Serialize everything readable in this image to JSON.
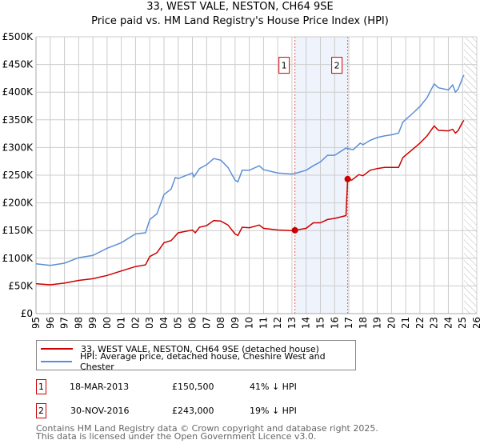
{
  "header": {
    "title": "33, WEST VALE, NESTON, CH64 9SE",
    "subtitle": "Price paid vs. HM Land Registry's House Price Index (HPI)"
  },
  "chart_data": {
    "type": "line",
    "title": "33, WEST VALE, NESTON, CH64 9SE",
    "subtitle": "Price paid vs. HM Land Registry's House Price Index (HPI)",
    "xlim": [
      1995,
      2026
    ],
    "ylim": [
      0,
      500000
    ],
    "grid": true,
    "y_ticks": [
      0,
      50000,
      100000,
      150000,
      200000,
      250000,
      300000,
      350000,
      400000,
      450000,
      500000
    ],
    "y_tick_labels": [
      "£0",
      "£50K",
      "£100K",
      "£150K",
      "£200K",
      "£250K",
      "£300K",
      "£350K",
      "£400K",
      "£450K",
      "£500K"
    ],
    "x_ticks": [
      1995,
      1996,
      1997,
      1998,
      1999,
      2000,
      2001,
      2002,
      2003,
      2004,
      2005,
      2006,
      2007,
      2008,
      2009,
      2010,
      2011,
      2012,
      2013,
      2014,
      2015,
      2016,
      2017,
      2018,
      2019,
      2020,
      2021,
      2022,
      2023,
      2024,
      2025,
      2026
    ],
    "x_tick_labels": [
      "1995",
      "1996",
      "1997",
      "1998",
      "1999",
      "2000",
      "2001",
      "2002",
      "2003",
      "2004",
      "2005",
      "2006",
      "2007",
      "2008",
      "2009",
      "2010",
      "2011",
      "2012",
      "2013",
      "2014",
      "2015",
      "2016",
      "2017",
      "2018",
      "2019",
      "2020",
      "2021",
      "2022",
      "2023",
      "2024",
      "2025",
      "2026"
    ],
    "shaded_range": [
      2013.21,
      2016.92
    ],
    "hatched_from": 2025.1,
    "colors": {
      "property": "#cc0000",
      "hpi": "#5b8fd6",
      "shade": "#eef3fc",
      "marker_border": "#cc0000"
    },
    "series": [
      {
        "name": "33, WEST VALE, NESTON, CH64 9SE (detached house)",
        "color": "#cc0000",
        "x": [
          1995,
          1996,
          1997,
          1998,
          1999,
          2000,
          2001,
          2002,
          2002.7,
          2003,
          2003.5,
          2004,
          2004.5,
          2005,
          2006,
          2006.2,
          2006.5,
          2007,
          2007.5,
          2008,
          2008.5,
          2009,
          2009.2,
          2009.5,
          2010,
          2010.7,
          2011,
          2012,
          2013,
          2013.21,
          2014,
          2014.5,
          2015,
          2015.5,
          2016,
          2016.8,
          2016.92,
          2017.2,
          2017.7,
          2018,
          2018.5,
          2019,
          2019.5,
          2020,
          2020.5,
          2020.8,
          2021.5,
          2022,
          2022.5,
          2023,
          2023.3,
          2024,
          2024.3,
          2024.5,
          2024.7,
          2025,
          2025.1
        ],
        "y": [
          54000,
          52000,
          55000,
          60000,
          63000,
          69000,
          77000,
          85000,
          88000,
          103000,
          110000,
          128000,
          132000,
          146000,
          151000,
          146000,
          156000,
          159000,
          168000,
          167000,
          160000,
          144000,
          141000,
          156000,
          155000,
          160000,
          154000,
          151000,
          150000,
          150500,
          154000,
          164000,
          164000,
          170000,
          172000,
          177000,
          243000,
          241000,
          251000,
          249000,
          259000,
          262000,
          264000,
          264000,
          264000,
          282000,
          297000,
          308000,
          321000,
          339000,
          331000,
          330000,
          333000,
          326000,
          331000,
          346000,
          349000
        ]
      },
      {
        "name": "HPI: Average price, detached house, Cheshire West and Chester",
        "color": "#5b8fd6",
        "x": [
          1995,
          1996,
          1997,
          1998,
          1999,
          2000,
          2001,
          2002,
          2002.7,
          2003,
          2003.5,
          2004,
          2004.5,
          2004.8,
          2005,
          2006,
          2006.1,
          2006.5,
          2007,
          2007.5,
          2008,
          2008.5,
          2009,
          2009.2,
          2009.5,
          2010,
          2010.7,
          2011,
          2012,
          2013,
          2013.21,
          2014,
          2014.5,
          2015,
          2015.5,
          2016,
          2016.8,
          2017.3,
          2017.8,
          2018,
          2018.5,
          2019,
          2019.5,
          2020,
          2020.5,
          2020.8,
          2021.5,
          2022,
          2022.5,
          2023,
          2023.3,
          2024,
          2024.3,
          2024.5,
          2024.7,
          2025,
          2025.1
        ],
        "y": [
          90000,
          87000,
          91000,
          101000,
          105000,
          118000,
          128000,
          144000,
          146000,
          170000,
          180000,
          215000,
          225000,
          246000,
          244000,
          254000,
          247000,
          262000,
          269000,
          280000,
          277000,
          264000,
          241000,
          238000,
          259000,
          259000,
          267000,
          260000,
          254000,
          252000,
          253000,
          259000,
          267000,
          274000,
          286000,
          286000,
          299000,
          296000,
          308000,
          305000,
          313000,
          318000,
          321000,
          323000,
          326000,
          346000,
          362000,
          374000,
          390000,
          415000,
          408000,
          404000,
          413000,
          400000,
          406000,
          426000,
          431000
        ]
      }
    ],
    "annotations": [
      {
        "label": "1",
        "x": 2013.21,
        "y": 150500
      },
      {
        "label": "2",
        "x": 2016.92,
        "y": 243000
      }
    ]
  },
  "legend": {
    "items": [
      {
        "label": "33, WEST VALE, NESTON, CH64 9SE (detached house)",
        "color": "#cc0000"
      },
      {
        "label": "HPI: Average price, detached house, Cheshire West and Chester",
        "color": "#5b8fd6"
      }
    ]
  },
  "transactions": [
    {
      "num": "1",
      "date": "18-MAR-2013",
      "price": "£150,500",
      "hpi": "41% ↓ HPI"
    },
    {
      "num": "2",
      "date": "30-NOV-2016",
      "price": "£243,000",
      "hpi": "19% ↓ HPI"
    }
  ],
  "footer": {
    "line1": "Contains HM Land Registry data © Crown copyright and database right 2025.",
    "line2": "This data is licensed under the Open Government Licence v3.0."
  }
}
